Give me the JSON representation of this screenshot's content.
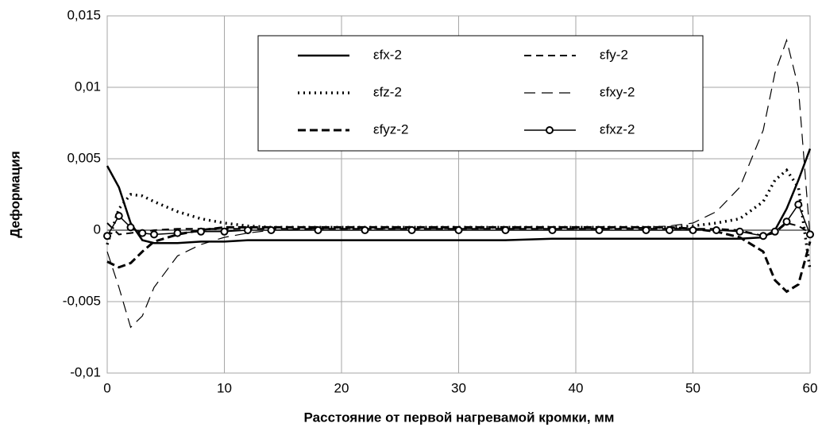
{
  "chart_data": {
    "type": "line",
    "xlabel": "Расстояние от первой нагревамой кромки, мм",
    "ylabel": "Деформация",
    "x": [
      0,
      1,
      2,
      3,
      4,
      6,
      8,
      10,
      12,
      14,
      18,
      22,
      26,
      30,
      34,
      38,
      42,
      46,
      48,
      50,
      52,
      54,
      56,
      57,
      58,
      59,
      60
    ],
    "series": [
      {
        "name": "εfx-2",
        "color": "#000000",
        "width": 2.5,
        "dash": "none",
        "values": [
          0.0045,
          0.003,
          0.0005,
          -0.0007,
          -0.0009,
          -0.0009,
          -0.0008,
          -0.0008,
          -0.0007,
          -0.0007,
          -0.0007,
          -0.0007,
          -0.0007,
          -0.0007,
          -0.0007,
          -0.0006,
          -0.0006,
          -0.0006,
          -0.0006,
          -0.0006,
          -0.0006,
          -0.0006,
          -0.0005,
          0,
          0.0015,
          0.0035,
          0.0057
        ]
      },
      {
        "name": "εfy-2",
        "color": "#000000",
        "width": 2,
        "dash": "9 6",
        "values": [
          0.0005,
          -0.0003,
          -0.0002,
          -0.0001,
          0,
          0.0001,
          0.0001,
          0.0001,
          0.0001,
          0.0001,
          0.0001,
          0.0001,
          0.0001,
          0.0001,
          0.0001,
          0.0001,
          0.0001,
          0.0001,
          0.0001,
          0.0001,
          0.0001,
          0,
          -0.0004,
          -0.0002,
          0.0005,
          0.0003,
          -0.0002
        ]
      },
      {
        "name": "εfz-2",
        "color": "#000000",
        "width": 3.5,
        "dash": "2 5",
        "values": [
          -0.001,
          0.0015,
          0.0025,
          0.0024,
          0.002,
          0.0013,
          0.0008,
          0.0005,
          0.0003,
          0.0002,
          0.0002,
          0.0002,
          0.0002,
          0.0002,
          0.0002,
          0.0002,
          0.0002,
          0.0002,
          0.0002,
          0.0003,
          0.0005,
          0.0008,
          0.002,
          0.0035,
          0.0042,
          0.003,
          -0.0028
        ]
      },
      {
        "name": "εfxy-2",
        "color": "#000000",
        "width": 1.2,
        "dash": "14 8",
        "values": [
          -0.0015,
          -0.004,
          -0.0068,
          -0.006,
          -0.004,
          -0.0018,
          -0.001,
          -0.0005,
          -0.0002,
          0,
          0.0001,
          0.0001,
          0.0001,
          0.0001,
          0.0001,
          0.0001,
          0.0001,
          0.0002,
          0.0003,
          0.0005,
          0.0013,
          0.003,
          0.007,
          0.011,
          0.0133,
          0.01,
          -0.0005
        ]
      },
      {
        "name": "εfyz-2",
        "color": "#000000",
        "width": 3,
        "dash": "10 5",
        "values": [
          -0.0022,
          -0.0026,
          -0.0023,
          -0.0015,
          -0.0008,
          -0.0003,
          0,
          0.0002,
          0.0002,
          0.0002,
          0.0002,
          0.0002,
          0.0002,
          0.0002,
          0.0002,
          0.0002,
          0.0002,
          0.0002,
          0.0002,
          0.0001,
          -0.0001,
          -0.0005,
          -0.0015,
          -0.0035,
          -0.0043,
          -0.0038,
          -0.0008
        ]
      },
      {
        "name": "εfxz-2",
        "color": "#000000",
        "width": 1.5,
        "dash": "none",
        "marker": "circle",
        "values": [
          -0.0004,
          0.001,
          0.0002,
          -0.0002,
          -0.0003,
          -0.0002,
          -0.0001,
          -0.0001,
          0,
          0,
          0,
          0,
          0,
          0,
          0,
          0,
          0,
          0,
          0,
          0,
          0,
          -0.0001,
          -0.0004,
          -0.0001,
          0.0006,
          0.0018,
          -0.0003
        ]
      }
    ],
    "xlim": [
      0,
      60
    ],
    "xticks": [
      0,
      10,
      20,
      30,
      40,
      50,
      60
    ],
    "ylim": [
      -0.01,
      0.015
    ],
    "yticks": [
      {
        "value": -0.01,
        "label": "-0,01"
      },
      {
        "value": -0.005,
        "label": "-0,005"
      },
      0,
      {
        "value": 0.005,
        "label": "0,005"
      },
      {
        "value": 0.01,
        "label": "0,01"
      },
      {
        "value": 0.015,
        "label": "0,015"
      }
    ],
    "grid": true,
    "legend": "top"
  }
}
